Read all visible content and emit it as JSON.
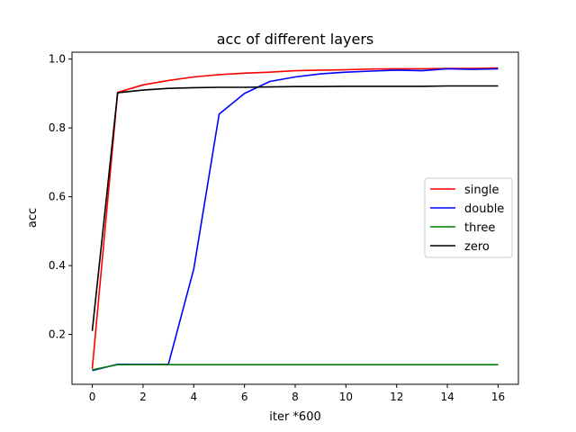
{
  "chart_data": {
    "type": "line",
    "title": "acc of different layers",
    "xlabel": "iter *600",
    "ylabel": "acc",
    "xlim": [
      -0.8,
      16.8
    ],
    "ylim": [
      0.055,
      1.02
    ],
    "xticks": [
      0,
      2,
      4,
      6,
      8,
      10,
      12,
      14,
      16
    ],
    "yticks": [
      0.2,
      0.4,
      0.6,
      0.8,
      1.0
    ],
    "ytick_labels": [
      "0.2",
      "0.4",
      "0.6",
      "0.8",
      "1.0"
    ],
    "grid": false,
    "legend_position": "center-right",
    "x": [
      0,
      1,
      2,
      3,
      4,
      5,
      6,
      7,
      8,
      9,
      10,
      11,
      12,
      13,
      14,
      15,
      16
    ],
    "series": [
      {
        "name": "single",
        "color": "#ff0000",
        "values": [
          0.1,
          0.903,
          0.925,
          0.938,
          0.948,
          0.955,
          0.959,
          0.962,
          0.966,
          0.968,
          0.969,
          0.971,
          0.972,
          0.972,
          0.973,
          0.973,
          0.974
        ]
      },
      {
        "name": "double",
        "color": "#0000ff",
        "values": [
          0.095,
          0.113,
          0.113,
          0.113,
          0.39,
          0.84,
          0.9,
          0.935,
          0.948,
          0.957,
          0.962,
          0.965,
          0.968,
          0.966,
          0.972,
          0.97,
          0.972
        ]
      },
      {
        "name": "three",
        "color": "#008000",
        "values": [
          0.097,
          0.112,
          0.112,
          0.112,
          0.112,
          0.112,
          0.112,
          0.112,
          0.112,
          0.112,
          0.112,
          0.112,
          0.112,
          0.112,
          0.112,
          0.112,
          0.112
        ]
      },
      {
        "name": "zero",
        "color": "#000000",
        "values": [
          0.21,
          0.902,
          0.91,
          0.915,
          0.917,
          0.918,
          0.918,
          0.919,
          0.92,
          0.92,
          0.921,
          0.921,
          0.921,
          0.921,
          0.922,
          0.922,
          0.922
        ]
      }
    ]
  }
}
